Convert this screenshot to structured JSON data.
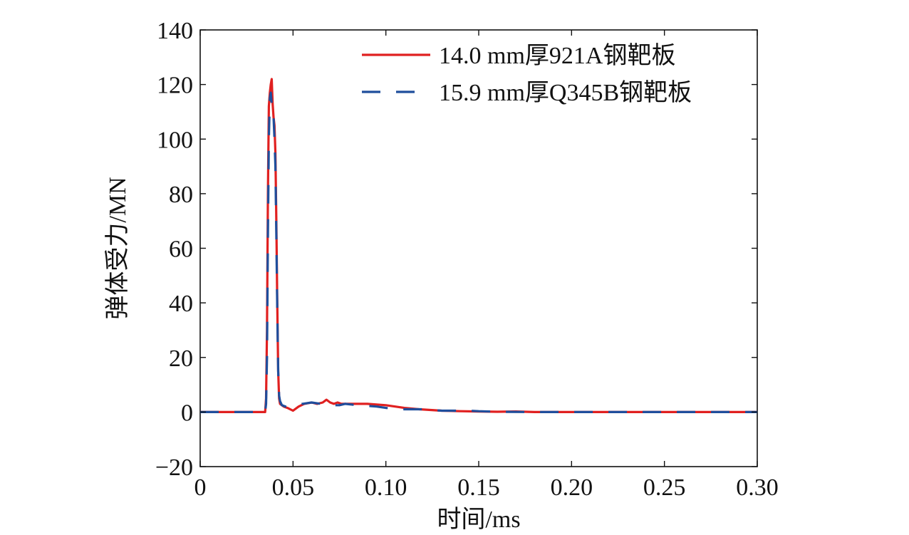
{
  "chart_data": {
    "type": "line",
    "xlabel": "时间/ms",
    "ylabel": "弹体受力/MN",
    "xlim": [
      0,
      0.3
    ],
    "ylim": [
      -20,
      140
    ],
    "xticks": [
      0,
      0.05,
      0.1,
      0.15,
      0.2,
      0.25,
      0.3
    ],
    "xtick_labels": [
      "0",
      "0.05",
      "0.10",
      "0.15",
      "0.20",
      "0.25",
      "0.30"
    ],
    "yticks": [
      -20,
      0,
      20,
      40,
      60,
      80,
      100,
      120,
      140
    ],
    "ytick_labels": [
      "−20",
      "0",
      "20",
      "40",
      "60",
      "80",
      "100",
      "120",
      "140"
    ],
    "grid": false,
    "legend_position": "top-right",
    "series": [
      {
        "name": "14.0 mm厚921A钢靶板",
        "color": "#e02020",
        "style": "solid",
        "x": [
          0,
          0.035,
          0.0355,
          0.036,
          0.0365,
          0.037,
          0.0375,
          0.038,
          0.0385,
          0.039,
          0.0395,
          0.04,
          0.0405,
          0.041,
          0.0415,
          0.042,
          0.0425,
          0.043,
          0.045,
          0.047,
          0.05,
          0.053,
          0.056,
          0.06,
          0.063,
          0.066,
          0.068,
          0.07,
          0.072,
          0.074,
          0.076,
          0.08,
          0.09,
          0.1,
          0.11,
          0.118,
          0.13,
          0.14,
          0.15,
          0.16,
          0.17,
          0.18,
          0.2,
          0.22,
          0.25,
          0.3
        ],
        "y": [
          0,
          0,
          5,
          30,
          80,
          112,
          117,
          120,
          122,
          113,
          108,
          105,
          95,
          70,
          40,
          15,
          5,
          3,
          2,
          1.5,
          0.5,
          2,
          3,
          3.5,
          3,
          3.5,
          4.5,
          3.5,
          3,
          3.5,
          3,
          3,
          3,
          2.5,
          1.5,
          1,
          0.5,
          0.3,
          0.2,
          0.1,
          0.2,
          0,
          0,
          0,
          0,
          0
        ]
      },
      {
        "name": "15.9 mm厚Q345B钢靶板",
        "color": "#1f4e9c",
        "style": "dashed",
        "x": [
          0,
          0.035,
          0.0355,
          0.036,
          0.0365,
          0.037,
          0.0375,
          0.038,
          0.0385,
          0.039,
          0.0395,
          0.04,
          0.0405,
          0.041,
          0.0415,
          0.042,
          0.0425,
          0.043,
          0.044,
          0.046,
          0.05,
          0.055,
          0.06,
          0.065,
          0.07,
          0.072,
          0.075,
          0.078,
          0.085,
          0.095,
          0.1,
          0.11,
          0.12,
          0.13,
          0.14,
          0.145,
          0.15,
          0.16,
          0.18,
          0.2,
          0.22,
          0.25,
          0.3
        ],
        "y": [
          0,
          0,
          3,
          20,
          65,
          100,
          115,
          117,
          113,
          110,
          108,
          100,
          90,
          65,
          38,
          15,
          6,
          4,
          2.5,
          2,
          2,
          3,
          3.5,
          3,
          3,
          2.5,
          2.5,
          3,
          2.5,
          2,
          1.5,
          1,
          1,
          0.5,
          0.5,
          0.5,
          0.3,
          0.1,
          0,
          0,
          0,
          0,
          0
        ]
      }
    ]
  }
}
